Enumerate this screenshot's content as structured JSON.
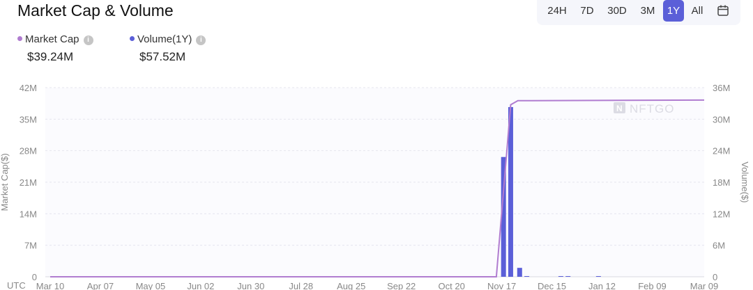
{
  "header": {
    "title": "Market Cap & Volume"
  },
  "ranges": {
    "options": [
      "24H",
      "7D",
      "30D",
      "3M",
      "1Y",
      "All"
    ],
    "selected": "1Y",
    "calendar_icon": "calendar-icon"
  },
  "legend": [
    {
      "label": "Market Cap",
      "value": "$39.24M",
      "color": "#b07cd0"
    },
    {
      "label": "Volume(1Y)",
      "value": "$57.52M",
      "color": "#5b5fd8"
    }
  ],
  "watermark": "NFTGO",
  "chart_data": {
    "type": "bar+line",
    "timezone_label": "UTC",
    "x_ticks": [
      "Mar 10",
      "Apr 07",
      "May 05",
      "Jun 02",
      "Jun 30",
      "Jul 28",
      "Aug 25",
      "Sep 22",
      "Oct 20",
      "Nov 17",
      "Dec 15",
      "Jan 12",
      "Feb 09",
      "Mar 09"
    ],
    "y_left": {
      "label": "Market Cap($)",
      "ticks": [
        "0",
        "7M",
        "14M",
        "21M",
        "28M",
        "35M",
        "42M"
      ],
      "range": [
        0,
        42000000
      ]
    },
    "y_right": {
      "label": "Volume($)",
      "ticks": [
        "0",
        "6M",
        "12M",
        "18M",
        "24M",
        "30M",
        "36M"
      ],
      "range": [
        0,
        36000000
      ]
    },
    "grid": true,
    "series": [
      {
        "name": "Market Cap",
        "kind": "line",
        "axis": "left",
        "color": "#b07cd0",
        "points": [
          [
            "Mar 10",
            0
          ],
          [
            "Nov 14",
            0
          ],
          [
            "Nov 22",
            38200000
          ],
          [
            "Nov 26",
            39100000
          ],
          [
            "Mar 09",
            39240000
          ]
        ]
      },
      {
        "name": "Volume(1Y)",
        "kind": "bar",
        "axis": "right",
        "color": "#5b5fd8",
        "points": [
          [
            "Nov 18",
            22800000
          ],
          [
            "Nov 22",
            32300000
          ],
          [
            "Nov 27",
            1700000
          ],
          [
            "Dec 01",
            100000
          ],
          [
            "Dec 20",
            80000
          ],
          [
            "Dec 24",
            80000
          ],
          [
            "Jan 10",
            50000
          ]
        ]
      }
    ]
  }
}
